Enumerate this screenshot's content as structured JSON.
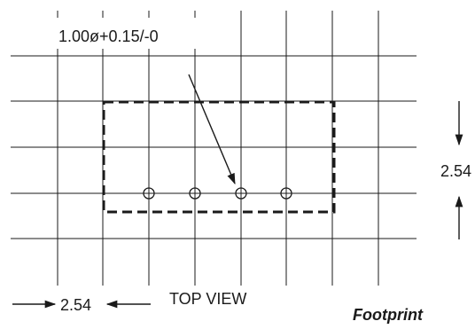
{
  "callout": {
    "hole_spec": "1.00ø+0.15/-0"
  },
  "dimensions": {
    "vertical_pitch": "2.54",
    "horizontal_pitch": "2.54"
  },
  "labels": {
    "view": "TOP VIEW",
    "title": "Footprint"
  },
  "pads": {
    "count": 4
  },
  "colors": {
    "line": "#1a1a1a",
    "grid": "#1a1a1a",
    "background": "#ffffff"
  }
}
